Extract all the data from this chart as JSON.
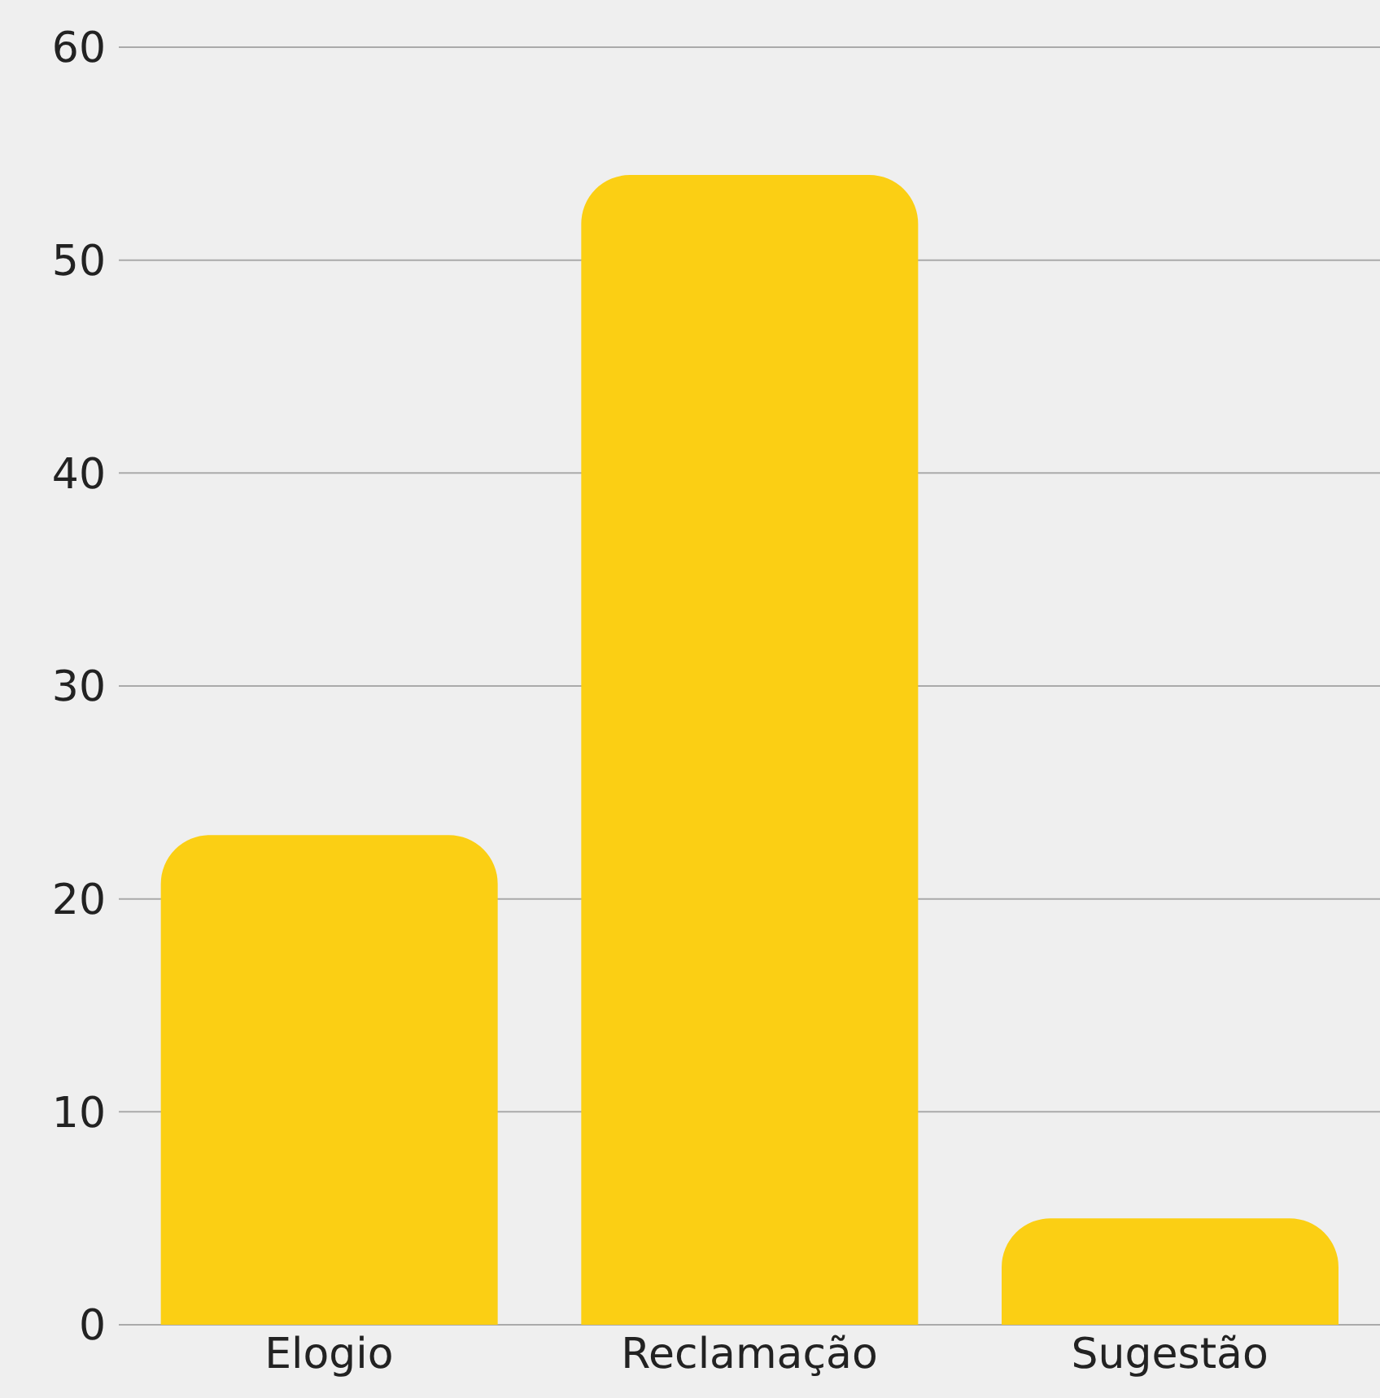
{
  "chart_data": {
    "type": "bar",
    "categories": [
      "Elogio",
      "Reclamação",
      "Sugestão"
    ],
    "values": [
      23,
      54,
      5
    ],
    "color": "#fbcf14",
    "ylim": [
      0,
      60
    ],
    "yticks": [
      0,
      10,
      20,
      30,
      40,
      50,
      60
    ],
    "grid": "y"
  }
}
